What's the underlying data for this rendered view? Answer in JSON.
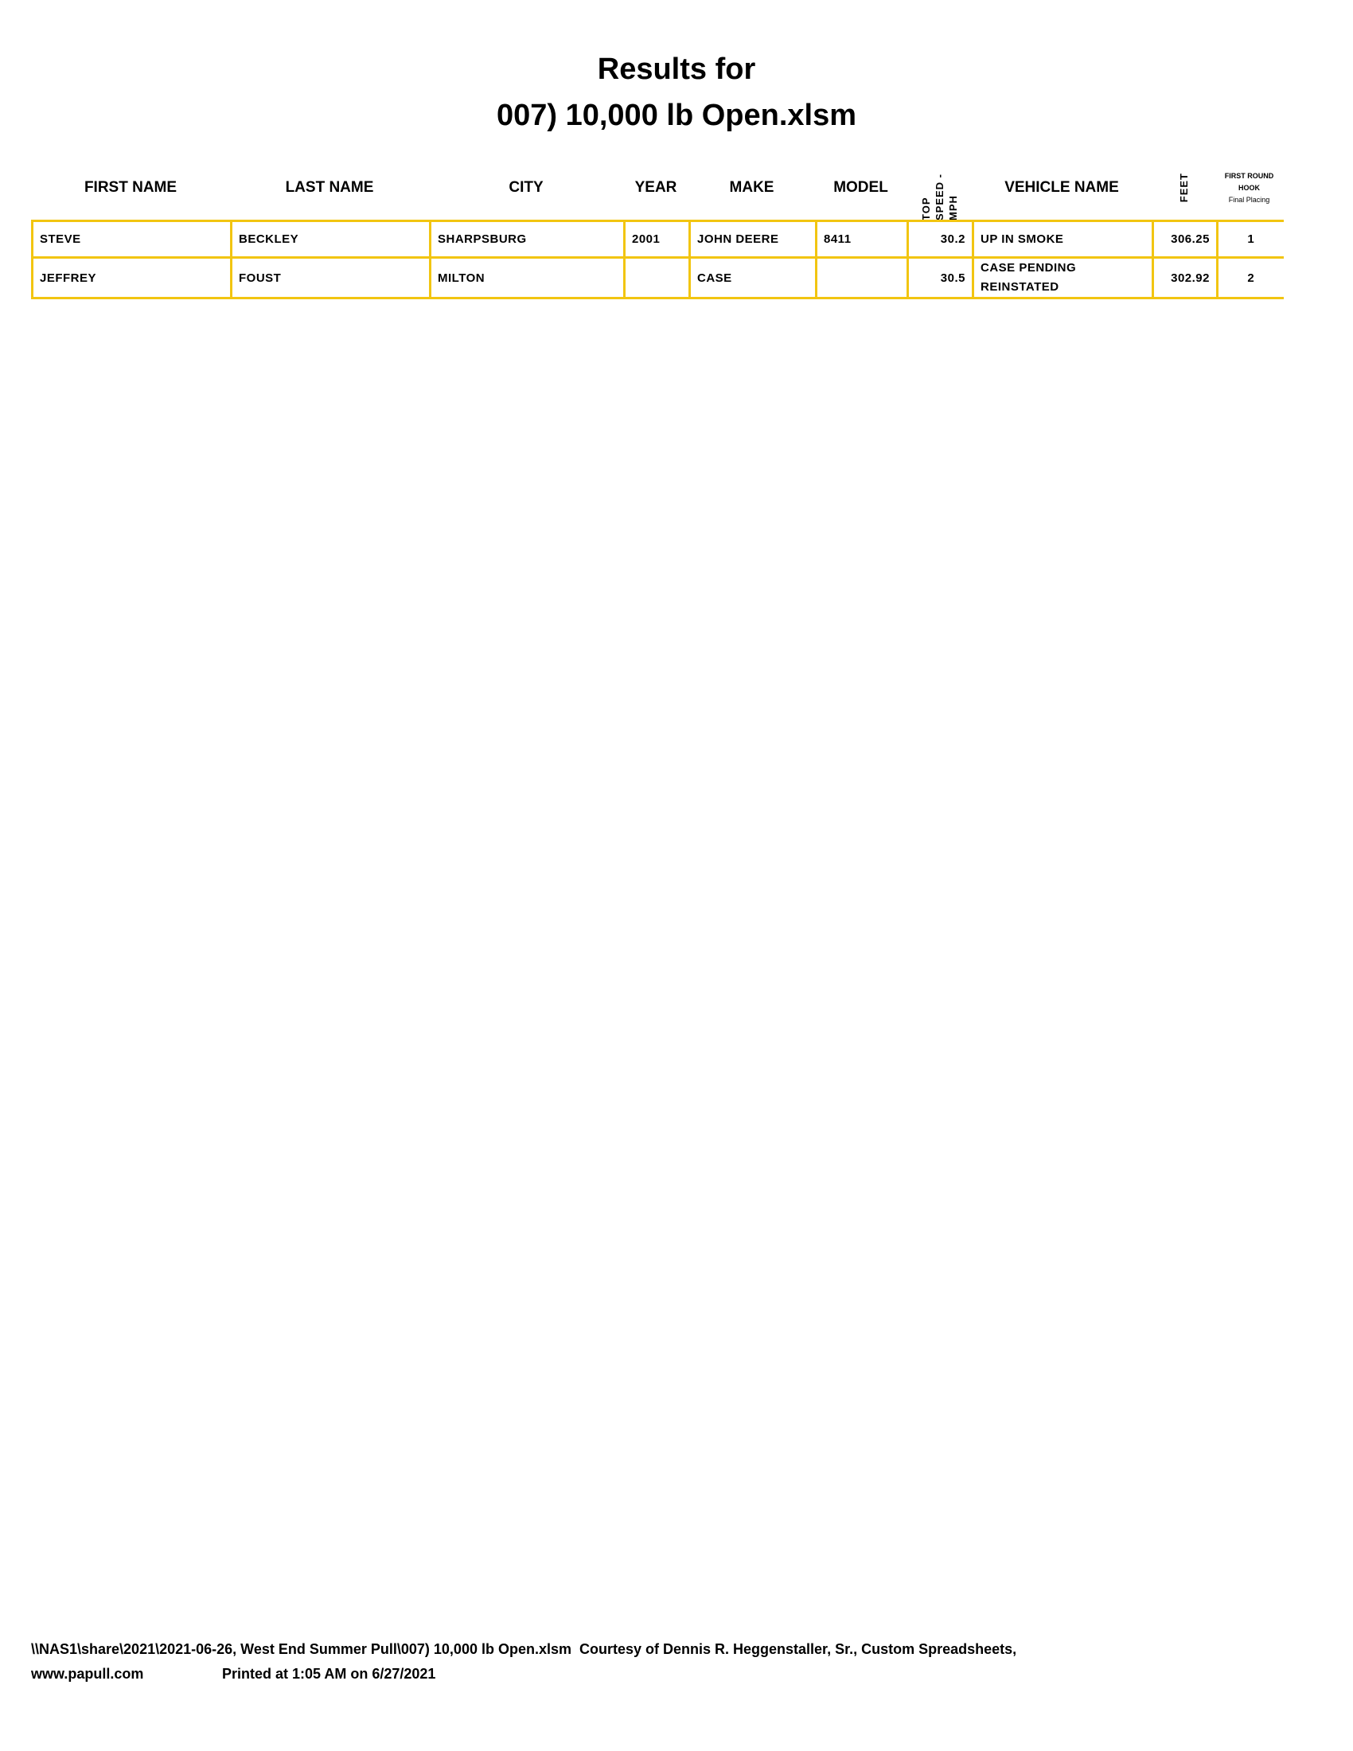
{
  "title": {
    "line1": "Results for",
    "line2": "007) 10,000 lb Open.xlsm"
  },
  "headers": {
    "first_name": "FIRST NAME",
    "last_name": "LAST NAME",
    "city": "CITY",
    "year": "YEAR",
    "make": "MAKE",
    "model": "MODEL",
    "top_speed": "TOP SPEED - MPH",
    "vehicle_name": "VEHICLE NAME",
    "feet": "FEET",
    "placing_1": "FIRST ROUND",
    "placing_2": "HOOK",
    "placing_3": "Final Placing"
  },
  "rows": [
    {
      "first": "STEVE",
      "last": "BECKLEY",
      "city": "SHARPSBURG",
      "year": "2001",
      "make": "JOHN DEERE",
      "model": "8411",
      "speed": "30.2",
      "vehicle": "UP IN SMOKE",
      "vehicle2": "",
      "feet": "306.25",
      "place": "1"
    },
    {
      "first": "JEFFREY",
      "last": "FOUST",
      "city": "MILTON",
      "year": "",
      "make": "CASE",
      "model": "",
      "speed": "30.5",
      "vehicle": "CASE PENDING",
      "vehicle2": "REINSTATED",
      "feet": "302.92",
      "place": "2"
    }
  ],
  "footer": {
    "line1": "\\\\NAS1\\share\\2021\\2021-06-26, West End Summer Pull\\007) 10,000 lb Open.xlsm  Courtesy of Dennis R. Heggenstaller, Sr., Custom Spreadsheets,",
    "website": "www.papull.com",
    "printed": "Printed at 1:05 AM on 6/27/2021"
  },
  "colors": {
    "border": "#f2c511"
  }
}
